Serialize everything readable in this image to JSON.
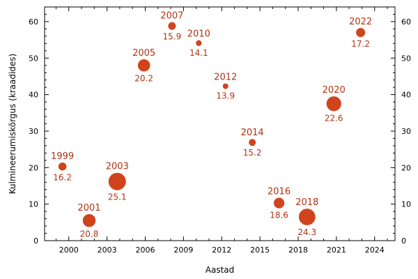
{
  "chart_data": {
    "type": "scatter",
    "xlabel": "Aastad",
    "ylabel": "Kulmineerumiskõrgus (kraadides)",
    "xlim": [
      1998.1,
      2025.6
    ],
    "ylim": [
      0,
      64
    ],
    "x_ticks": [
      2000,
      2003,
      2006,
      2009,
      2012,
      2015,
      2018,
      2021,
      2024
    ],
    "y_ticks": [
      0,
      10,
      20,
      30,
      40,
      50,
      60
    ],
    "grid": false,
    "point_color": "#d0441d",
    "label_color": "#b03212",
    "points": [
      {
        "x": 1999.5,
        "y": 20.3,
        "year": "1999",
        "value": "16.2"
      },
      {
        "x": 2001.6,
        "y": 5.5,
        "year": "2001",
        "value": "20.8"
      },
      {
        "x": 2003.8,
        "y": 16.2,
        "year": "2003",
        "value": "25.1"
      },
      {
        "x": 2005.9,
        "y": 48.0,
        "year": "2005",
        "value": "20.2"
      },
      {
        "x": 2008.1,
        "y": 58.8,
        "year": "2007",
        "value": "15.9"
      },
      {
        "x": 2010.2,
        "y": 54.1,
        "year": "2010",
        "value": "14.1"
      },
      {
        "x": 2012.3,
        "y": 42.3,
        "year": "2012",
        "value": "13.9"
      },
      {
        "x": 2014.4,
        "y": 26.9,
        "year": "2014",
        "value": "15.2"
      },
      {
        "x": 2016.5,
        "y": 10.3,
        "year": "2016",
        "value": "18.6"
      },
      {
        "x": 2018.7,
        "y": 6.5,
        "year": "2018",
        "value": "24.3"
      },
      {
        "x": 2020.8,
        "y": 37.5,
        "year": "2020",
        "value": "22.6"
      },
      {
        "x": 2022.9,
        "y": 57.0,
        "year": "2022",
        "value": "17.2"
      }
    ]
  }
}
